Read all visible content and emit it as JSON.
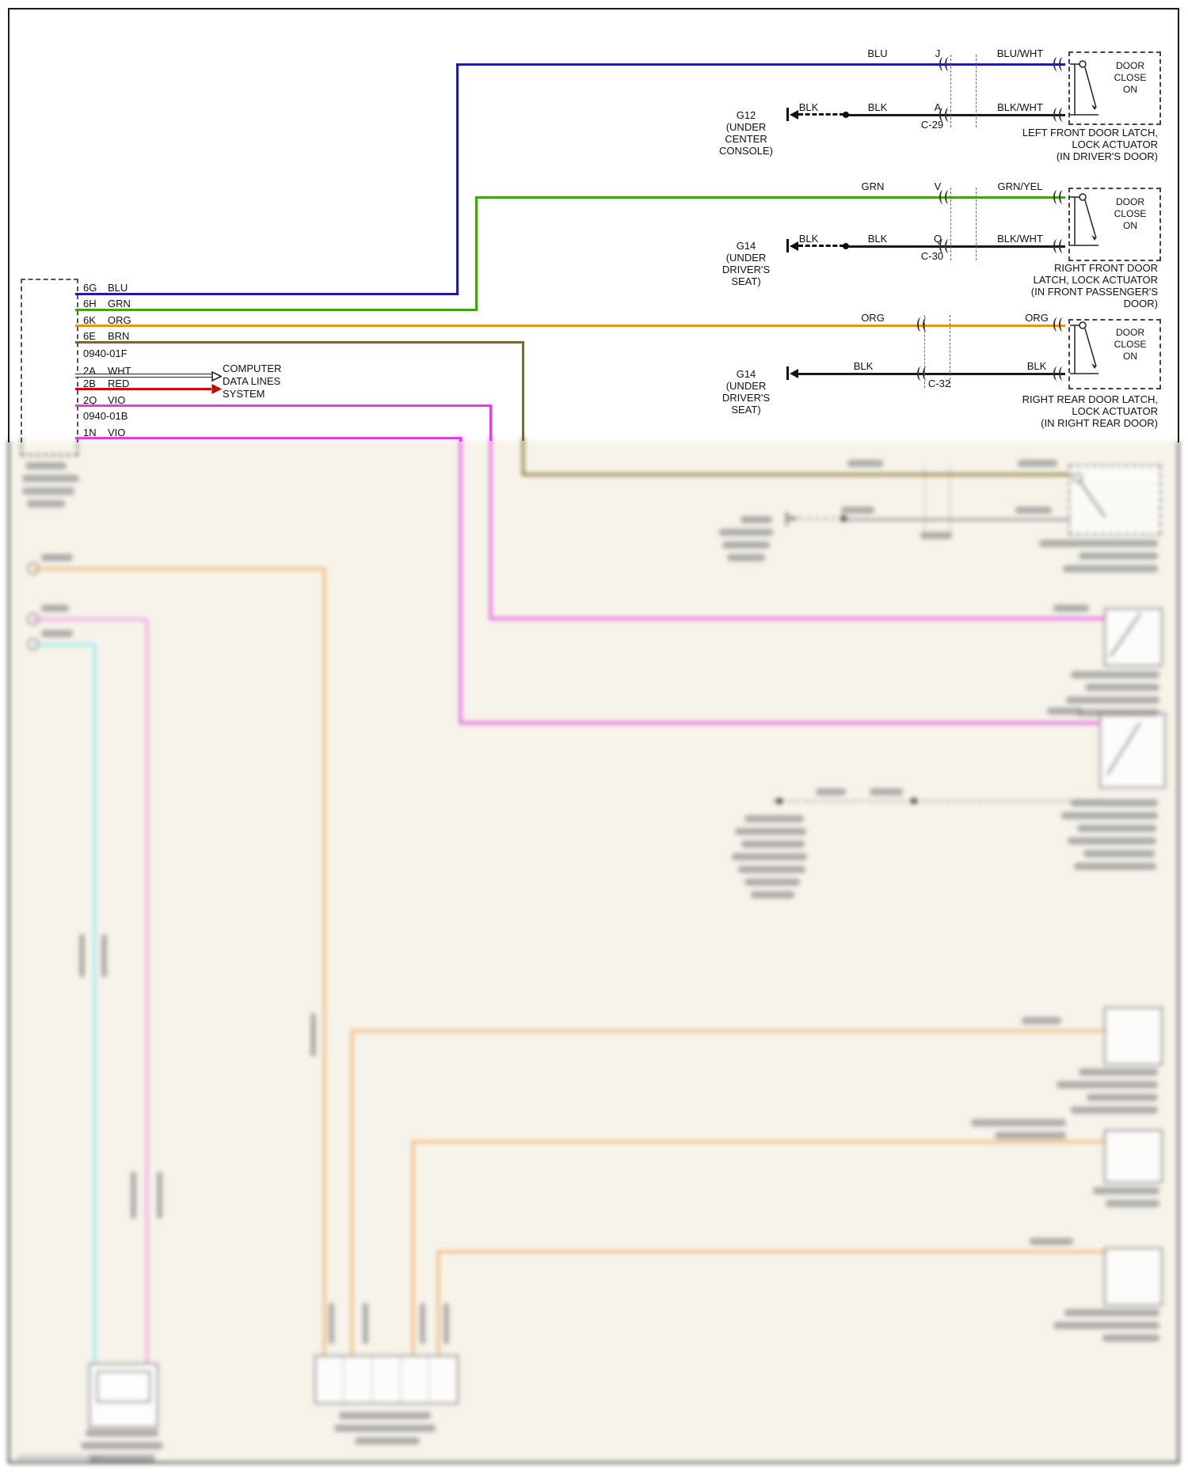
{
  "connector_block": {
    "pins": [
      {
        "code": "6G",
        "color": "BLU"
      },
      {
        "code": "6H",
        "color": "GRN"
      },
      {
        "code": "6K",
        "color": "ORG"
      },
      {
        "code": "6E",
        "color": "BRN"
      },
      {
        "code": "0940-01F",
        "color": ""
      },
      {
        "code": "2A",
        "color": "WHT"
      },
      {
        "code": "2B",
        "color": "RED"
      },
      {
        "code": "2Q",
        "color": "VIO"
      },
      {
        "code": "0940-01B",
        "color": ""
      },
      {
        "code": "1N",
        "color": "VIO"
      }
    ]
  },
  "computer_note": {
    "lines": [
      "COMPUTER",
      "DATA LINES",
      "SYSTEM"
    ]
  },
  "circuits": [
    {
      "sig_left": "BLU",
      "sig_pin": "J",
      "sig_right": "BLU/WHT",
      "gnd_left": "BLK",
      "gnd_mid": "BLK",
      "gnd_pin": "A",
      "gnd_right": "BLK/WHT",
      "inline_connector": "C-29",
      "ground_name": "G12",
      "ground_loc": [
        "(UNDER",
        "CENTER",
        "CONSOLE)"
      ],
      "device": [
        "DOOR",
        "CLOSE",
        "ON"
      ],
      "caption": [
        "LEFT FRONT DOOR LATCH,",
        "LOCK ACTUATOR",
        "(IN DRIVER'S DOOR)"
      ]
    },
    {
      "sig_left": "GRN",
      "sig_pin": "V",
      "sig_right": "GRN/YEL",
      "gnd_left": "BLK",
      "gnd_mid": "BLK",
      "gnd_pin": "Q",
      "gnd_right": "BLK/WHT",
      "inline_connector": "C-30",
      "ground_name": "G14",
      "ground_loc": [
        "(UNDER",
        "DRIVER'S",
        "SEAT)"
      ],
      "device": [
        "DOOR",
        "CLOSE",
        "ON"
      ],
      "caption": [
        "RIGHT FRONT DOOR",
        "LATCH, LOCK ACTUATOR",
        "(IN FRONT PASSENGER'S",
        "DOOR)"
      ]
    },
    {
      "sig_left": "ORG",
      "sig_pin": "",
      "sig_right": "ORG",
      "gnd_left": "BLK",
      "gnd_mid": "",
      "gnd_pin": "",
      "gnd_right": "BLK",
      "inline_connector": "C-32",
      "ground_name": "G14",
      "ground_loc": [
        "(UNDER",
        "DRIVER'S",
        "SEAT)"
      ],
      "device": [
        "DOOR",
        "CLOSE",
        "ON"
      ],
      "caption": [
        "RIGHT REAR DOOR LATCH,",
        "LOCK ACTUATOR",
        "(IN RIGHT REAR DOOR)"
      ]
    }
  ],
  "wire_colors": {
    "BLU": "#1c1ca8",
    "GRN": "#3fa50a",
    "ORG": "#e8941a",
    "BRN": "#7c6c16",
    "RED": "#cf0a0a",
    "VIO": "#e23ce2",
    "BLK": "#1a1a1a",
    "WHT": "#ffffff"
  }
}
